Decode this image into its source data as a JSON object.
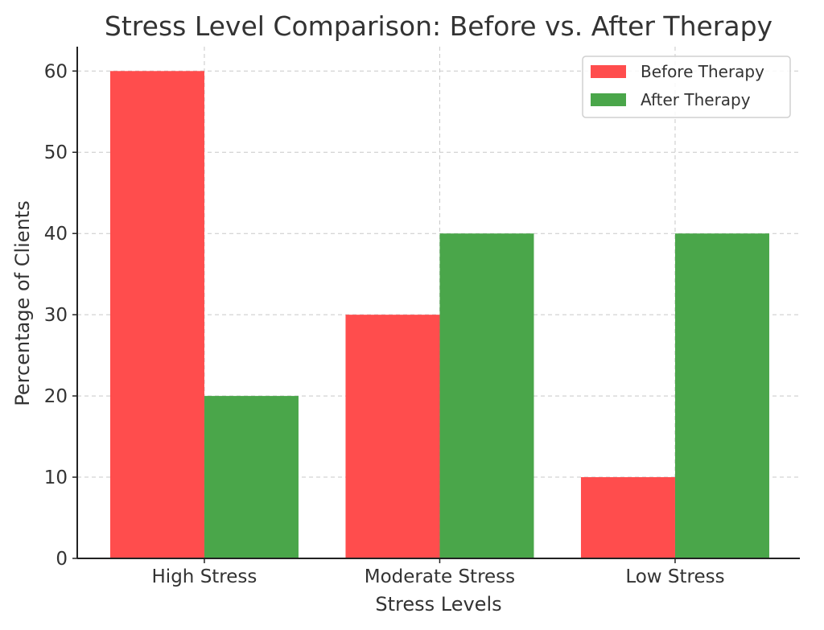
{
  "chart_data": {
    "type": "bar",
    "title": "Stress Level Comparison: Before vs. After Therapy",
    "xlabel": "Stress Levels",
    "ylabel": "Percentage of Clients",
    "categories": [
      "High Stress",
      "Moderate Stress",
      "Low Stress"
    ],
    "series": [
      {
        "name": "Before Therapy",
        "values": [
          60,
          30,
          10
        ],
        "color": "#ff4d4d"
      },
      {
        "name": "After Therapy",
        "values": [
          20,
          40,
          40
        ],
        "color": "#4aa64a"
      }
    ],
    "ylim": [
      0,
      63
    ],
    "yticks": [
      0,
      10,
      20,
      30,
      40,
      50,
      60
    ],
    "grid": true,
    "legend_position": "top-right"
  }
}
